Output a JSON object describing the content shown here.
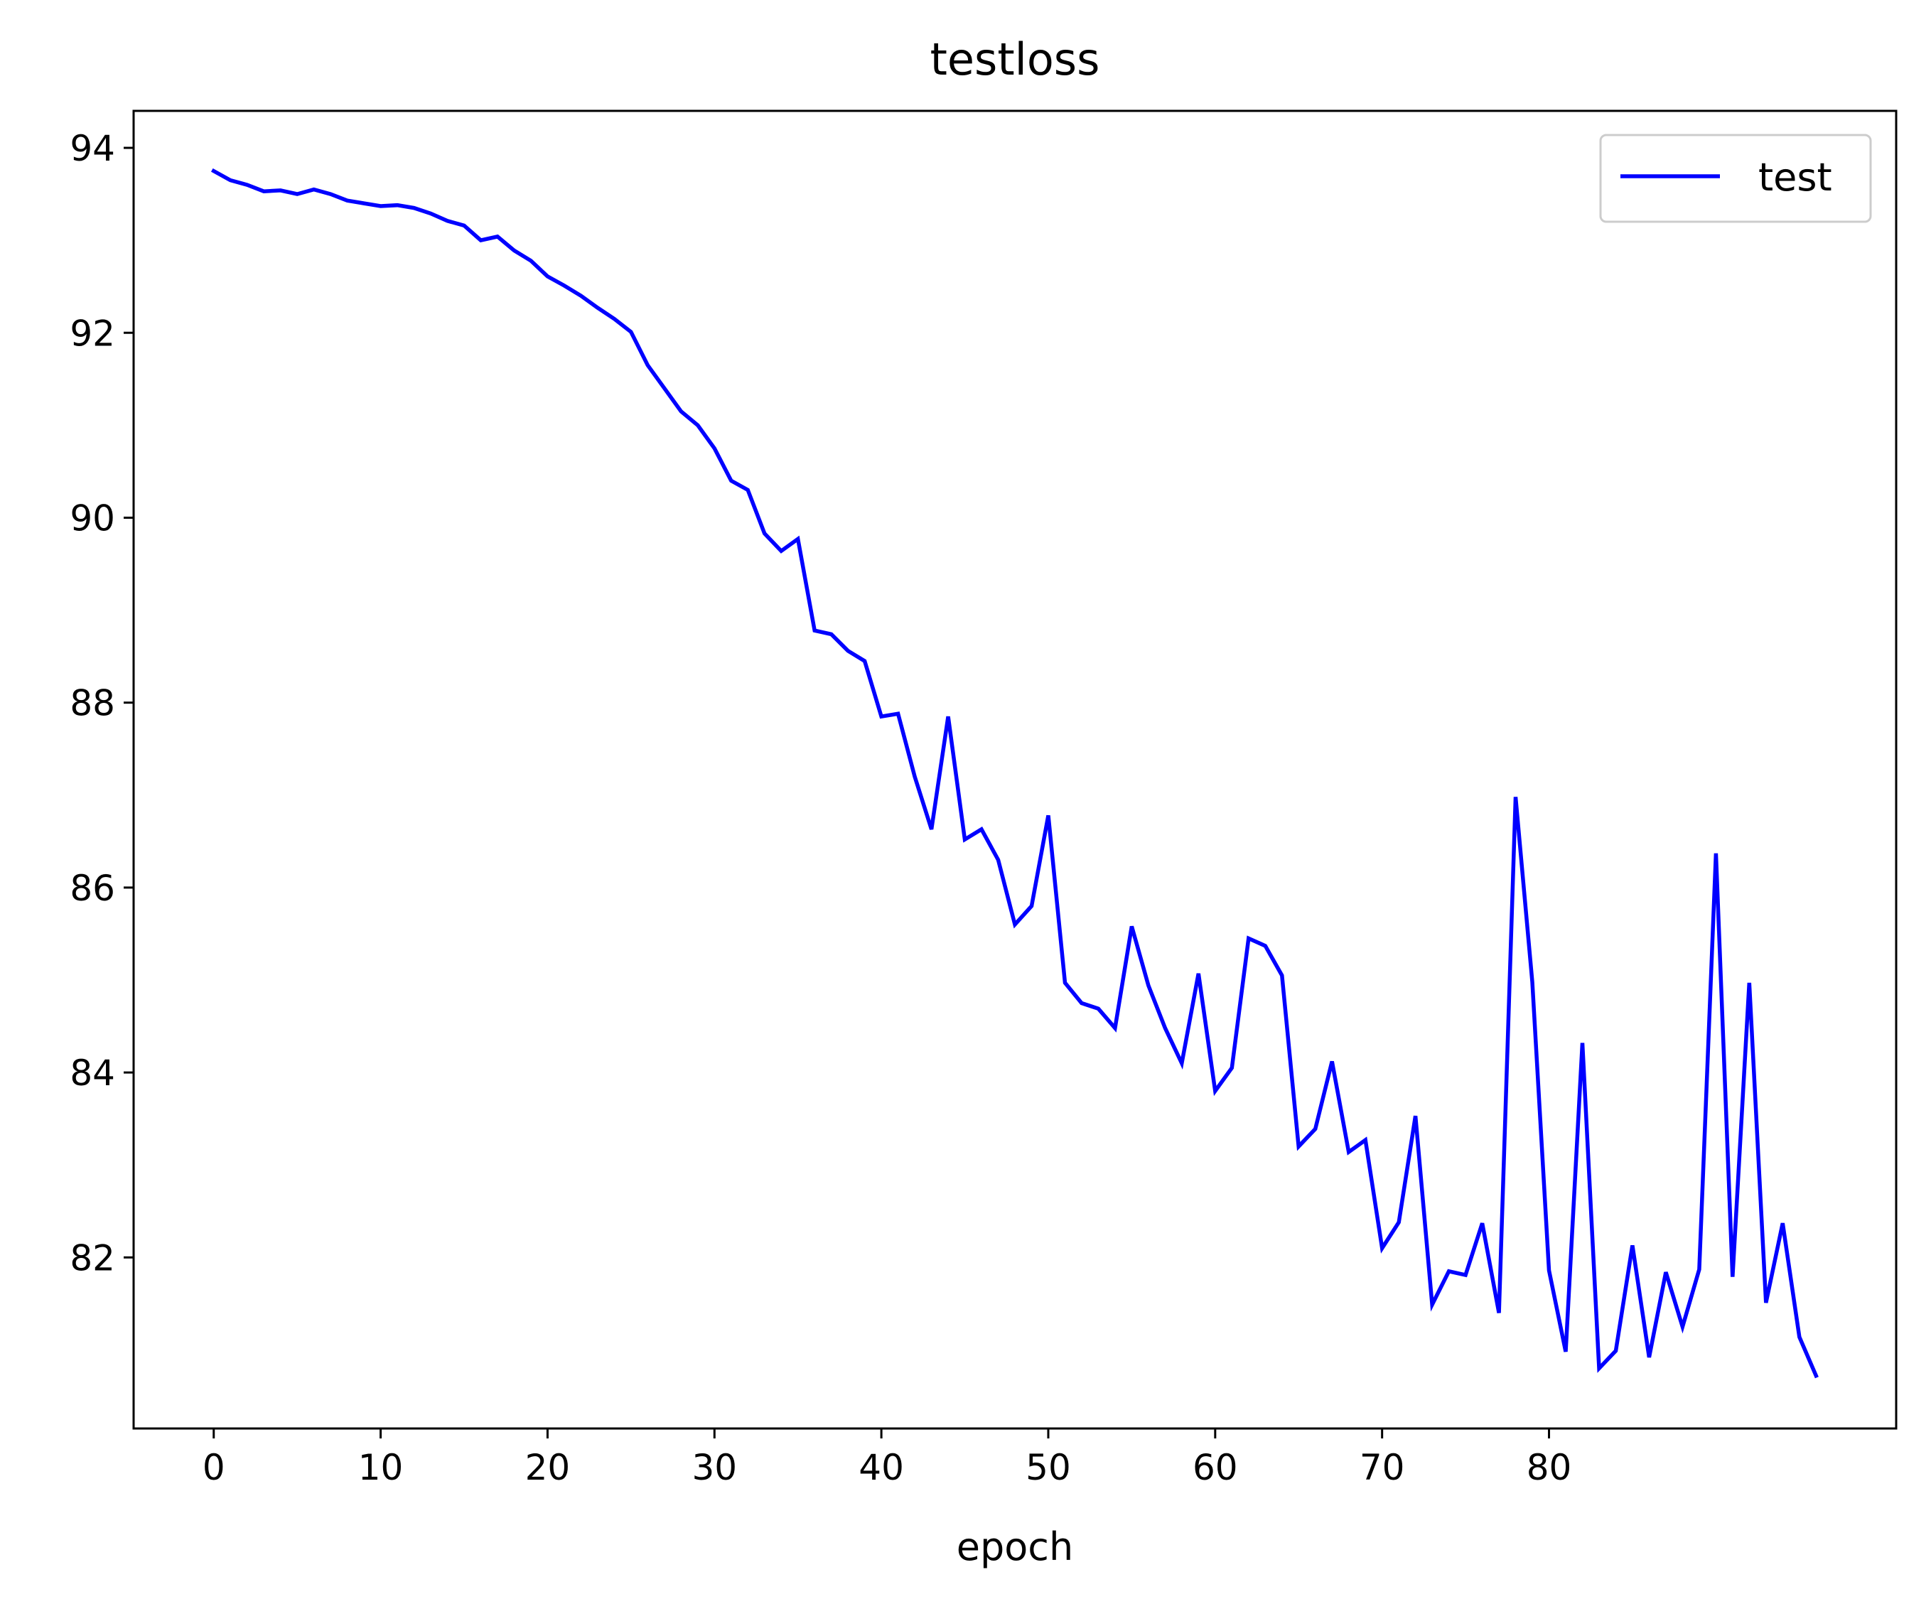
{
  "chart_data": {
    "type": "line",
    "title": "testloss",
    "xlabel": "epoch",
    "ylabel": "",
    "xlim": [
      -4.8,
      100.8
    ],
    "ylim": [
      80.15,
      94.4
    ],
    "xticks": [
      0,
      10,
      20,
      30,
      40,
      50,
      60,
      70,
      80
    ],
    "yticks": [
      82,
      84,
      86,
      88,
      90,
      92,
      94
    ],
    "grid": false,
    "legend_position": "top-right",
    "series_color": "#0000ff",
    "series": [
      {
        "name": "test",
        "x": [
          0,
          1,
          2,
          3,
          4,
          5,
          6,
          7,
          8,
          9,
          10,
          11,
          12,
          13,
          14,
          15,
          16,
          17,
          18,
          19,
          20,
          21,
          22,
          23,
          24,
          25,
          26,
          27,
          28,
          29,
          30,
          31,
          32,
          33,
          34,
          35,
          36,
          37,
          38,
          39,
          40,
          41,
          42,
          43,
          44,
          45,
          46,
          47,
          48,
          49,
          50,
          51,
          52,
          53,
          54,
          55,
          56,
          57,
          58,
          59,
          60,
          61,
          62,
          63,
          64,
          65,
          66,
          67,
          68,
          69,
          70,
          71,
          72,
          73,
          74,
          75,
          76,
          77,
          78,
          79,
          80,
          81,
          82,
          83,
          84,
          85,
          86,
          87,
          88,
          89,
          90,
          91,
          92,
          93,
          94,
          95,
          96
        ],
        "y": [
          93.75,
          93.65,
          93.6,
          93.53,
          93.54,
          93.5,
          93.55,
          93.5,
          93.43,
          93.4,
          93.37,
          93.38,
          93.35,
          93.29,
          93.21,
          93.16,
          93.0,
          93.04,
          92.89,
          92.78,
          92.61,
          92.51,
          92.4,
          92.27,
          92.15,
          92.01,
          91.65,
          91.4,
          91.15,
          91.0,
          90.75,
          90.4,
          90.3,
          89.83,
          89.64,
          89.77,
          88.78,
          88.74,
          88.56,
          88.45,
          87.85,
          87.88,
          87.2,
          86.63,
          87.85,
          86.52,
          86.63,
          86.3,
          85.6,
          85.8,
          86.78,
          84.97,
          84.75,
          84.69,
          84.48,
          85.58,
          84.94,
          84.48,
          84.1,
          85.07,
          83.8,
          84.05,
          85.45,
          85.37,
          85.05,
          83.2,
          83.39,
          84.12,
          83.14,
          83.27,
          82.1,
          82.38,
          83.53,
          81.49,
          81.85,
          81.81,
          82.37,
          81.4,
          86.98,
          84.98,
          81.86,
          80.98,
          84.32,
          80.8,
          80.99,
          82.13,
          80.92,
          81.84,
          81.25,
          81.87,
          86.37,
          81.79,
          84.97,
          81.51,
          82.37,
          81.14,
          80.72
        ]
      }
    ]
  }
}
